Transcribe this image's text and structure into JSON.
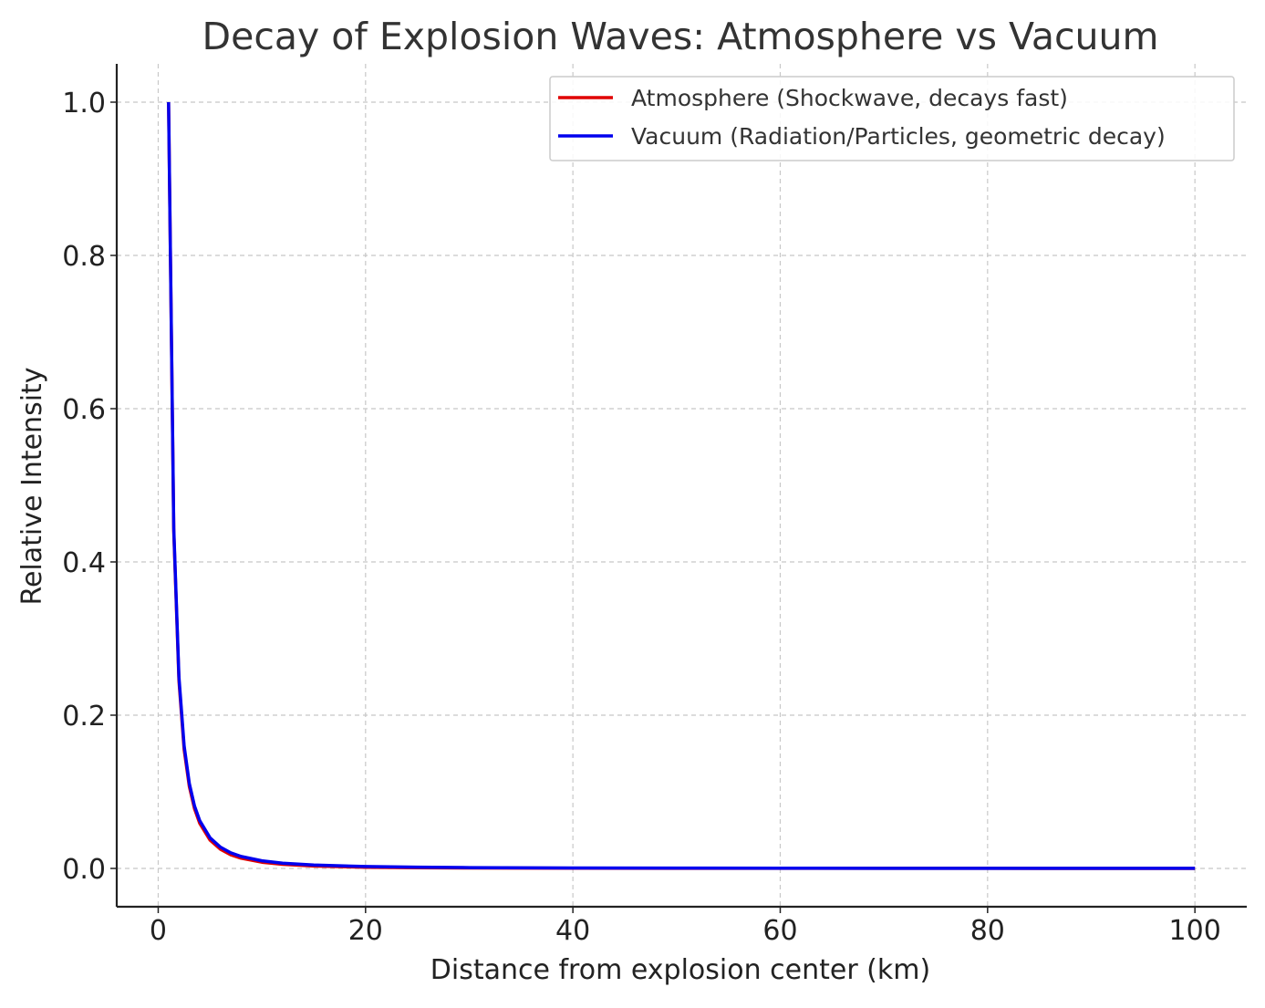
{
  "chart_data": {
    "type": "line",
    "title": "Decay of Explosion Waves: Atmosphere vs Vacuum",
    "xlabel": "Distance from explosion center (km)",
    "ylabel": "Relative Intensity",
    "xlim": [
      -4,
      105
    ],
    "ylim": [
      -0.05,
      1.05
    ],
    "xticks": [
      0,
      20,
      40,
      60,
      80,
      100
    ],
    "xtick_labels": [
      "0",
      "20",
      "40",
      "60",
      "80",
      "100"
    ],
    "yticks": [
      0.0,
      0.2,
      0.4,
      0.6,
      0.8,
      1.0
    ],
    "ytick_labels": [
      "0.0",
      "0.2",
      "0.4",
      "0.6",
      "0.8",
      "1.0"
    ],
    "grid": true,
    "legend_position": "top-right",
    "series": [
      {
        "name": "Atmosphere (Shockwave, decays fast)",
        "color": "#e00000",
        "x": [
          1,
          1.5,
          2,
          2.5,
          3,
          3.5,
          4,
          5,
          6,
          7,
          8,
          10,
          12,
          15,
          20,
          25,
          30,
          40,
          50,
          60,
          70,
          80,
          90,
          100
        ],
        "y": [
          1.0,
          0.44,
          0.245,
          0.155,
          0.107,
          0.078,
          0.059,
          0.037,
          0.025,
          0.0178,
          0.0133,
          0.0081,
          0.0053,
          0.0031,
          0.0015,
          0.0009,
          0.0006,
          0.0003,
          0.0002,
          0.0001,
          0.0001,
          0.0001,
          0.0,
          0.0
        ]
      },
      {
        "name": "Vacuum (Radiation/Particles, geometric decay)",
        "color": "#0000ee",
        "x": [
          1,
          1.5,
          2,
          2.5,
          3,
          3.5,
          4,
          5,
          6,
          7,
          8,
          10,
          12,
          15,
          20,
          25,
          30,
          40,
          50,
          60,
          70,
          80,
          90,
          100
        ],
        "y": [
          1.0,
          0.444,
          0.25,
          0.16,
          0.111,
          0.0816,
          0.0625,
          0.04,
          0.0278,
          0.0204,
          0.0156,
          0.01,
          0.0069,
          0.0044,
          0.0025,
          0.0016,
          0.0011,
          0.0006,
          0.0004,
          0.0003,
          0.0002,
          0.0002,
          0.0001,
          0.0001
        ]
      }
    ]
  }
}
